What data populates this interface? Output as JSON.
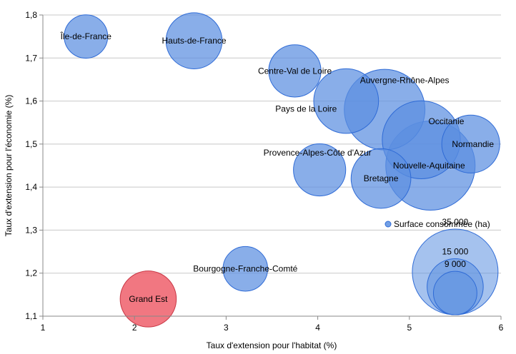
{
  "chart_data": {
    "type": "bubble",
    "xlabel": "Taux d'extension pour l'habitat (%)",
    "ylabel": "Taux d'extension pour l'économie (%)",
    "xlim": [
      1,
      6
    ],
    "ylim": [
      1.1,
      1.8
    ],
    "x_ticks": [
      "1",
      "2",
      "3",
      "4",
      "5",
      "6"
    ],
    "y_ticks": [
      "1,1",
      "1,2",
      "1,3",
      "1,4",
      "1,5",
      "1,6",
      "1,7",
      "1,8"
    ],
    "grid": "horizontal",
    "points": [
      {
        "label": "Île-de-France",
        "x": 1.47,
        "y": 1.75,
        "size": 9000,
        "highlight": false
      },
      {
        "label": "Hauts-de-France",
        "x": 2.65,
        "y": 1.74,
        "size": 15000,
        "highlight": false
      },
      {
        "label": "Centre-Val de Loire",
        "x": 3.75,
        "y": 1.67,
        "size": 13000,
        "highlight": false
      },
      {
        "label": "Pays de la Loire",
        "x": 4.31,
        "y": 1.6,
        "size": 20000,
        "highlight": false
      },
      {
        "label": "Auvergne-Rhône-Alpes",
        "x": 4.73,
        "y": 1.58,
        "size": 31000,
        "highlight": false
      },
      {
        "label": "Occitanie",
        "x": 5.13,
        "y": 1.51,
        "size": 29000,
        "highlight": false
      },
      {
        "label": "Provence-Alpes-Côte d'Azur",
        "x": 4.02,
        "y": 1.44,
        "size": 13000,
        "highlight": false
      },
      {
        "label": "Normandie",
        "x": 5.67,
        "y": 1.5,
        "size": 16000,
        "highlight": false
      },
      {
        "label": "Nouvelle-Aquitaine",
        "x": 5.23,
        "y": 1.45,
        "size": 38000,
        "highlight": false
      },
      {
        "label": "Bretagne",
        "x": 4.69,
        "y": 1.42,
        "size": 17000,
        "highlight": false
      },
      {
        "label": "Bourgogne-Franche-Comté",
        "x": 3.21,
        "y": 1.21,
        "size": 9500,
        "highlight": false
      },
      {
        "label": "Grand Est",
        "x": 2.15,
        "y": 1.14,
        "size": 15000,
        "highlight": true
      }
    ],
    "legend": {
      "title": "Surface consommée (ha)",
      "placement": "bottom-right",
      "sizes": [
        {
          "label": "35 000",
          "value": 35000
        },
        {
          "label": "15 000",
          "value": 15000
        },
        {
          "label": "9 000",
          "value": 9000
        }
      ]
    },
    "colors": {
      "bubble_fill": "#5b8fe0",
      "bubble_stroke": "#2f6bd6",
      "highlight_fill": "#ef5f6b",
      "highlight_stroke": "#c93846",
      "grid": "#c8c8c8",
      "axis": "#888888"
    }
  }
}
